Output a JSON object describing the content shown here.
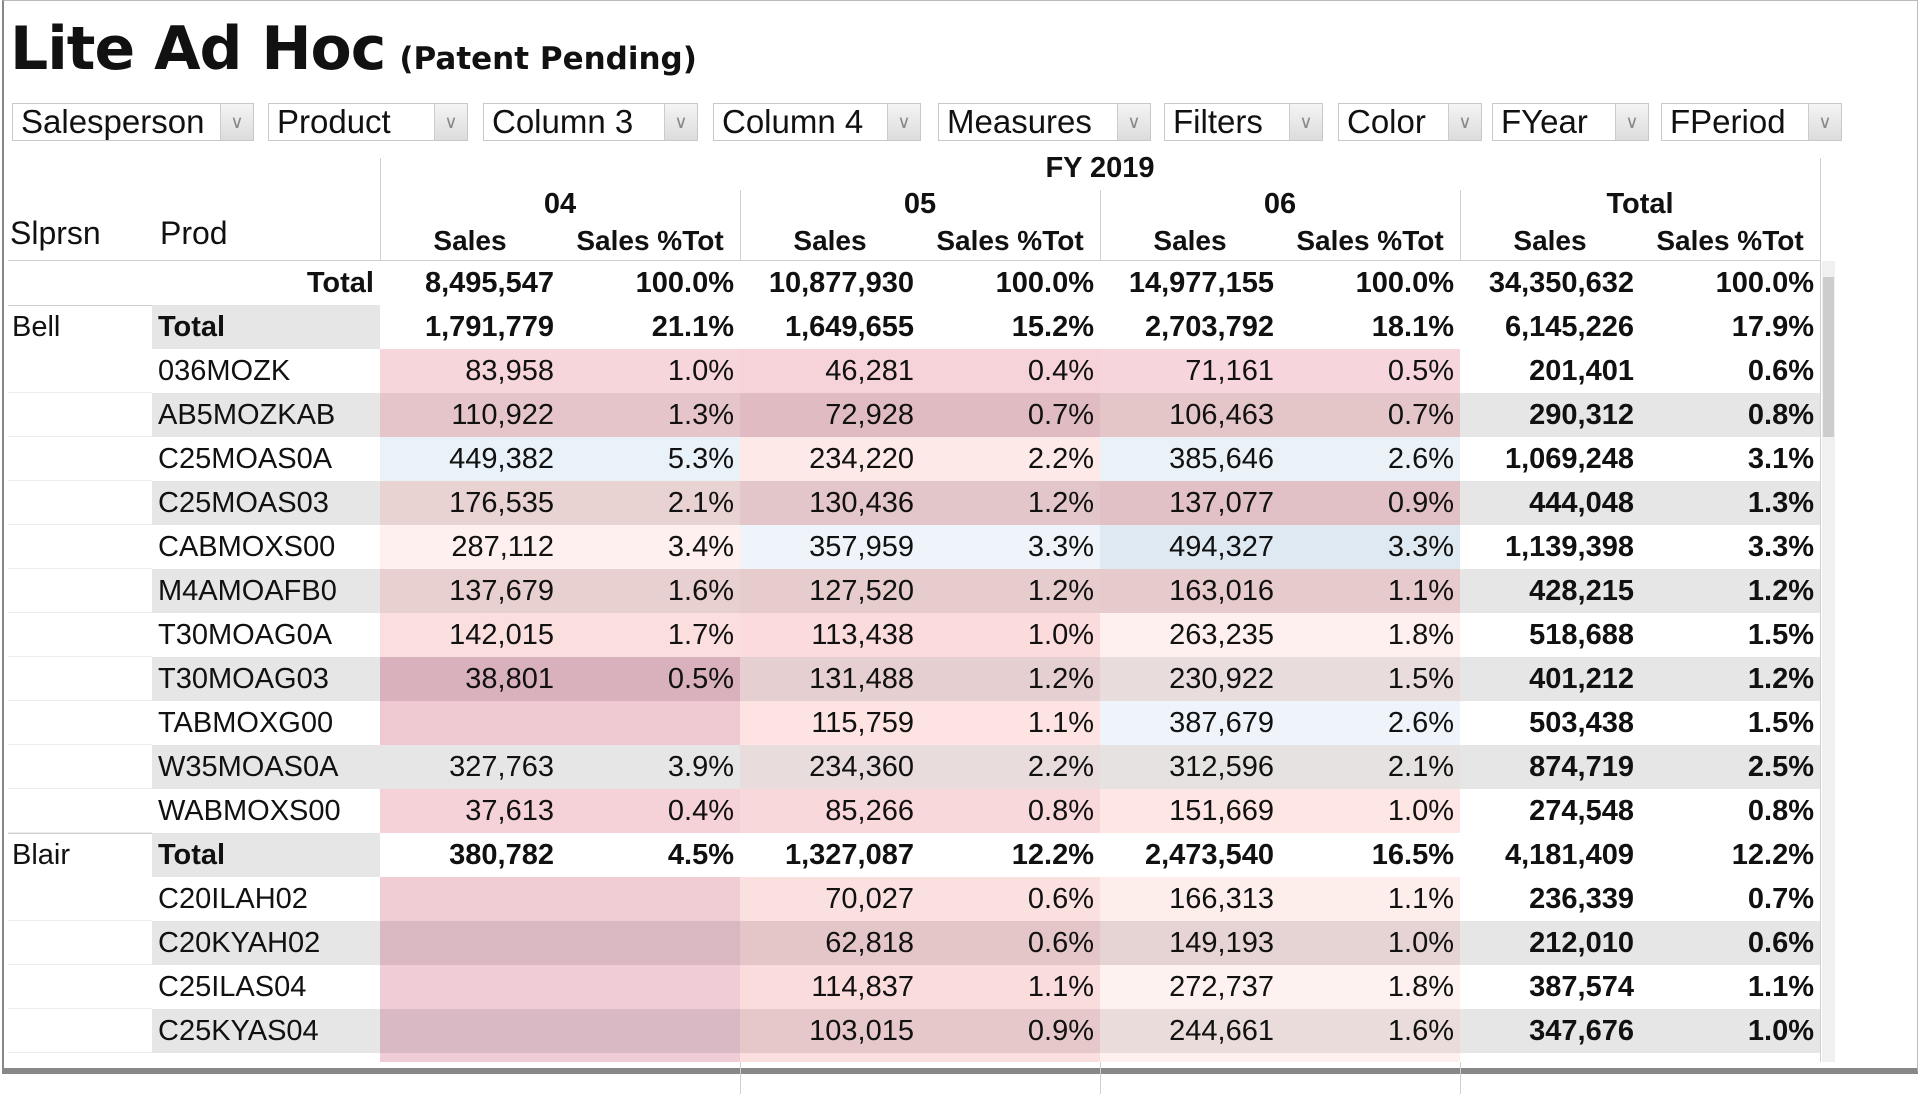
{
  "app": {
    "title": "Lite Ad Hoc",
    "subtitle": "(Patent Pending)"
  },
  "dropdowns": [
    {
      "label": "Salesperson"
    },
    {
      "label": "Product"
    },
    {
      "label": "Column 3"
    },
    {
      "label": "Column 4"
    },
    {
      "label": "Measures"
    },
    {
      "label": "Filters"
    },
    {
      "label": "Color"
    },
    {
      "label": "FYear"
    },
    {
      "label": "FPeriod"
    }
  ],
  "header": {
    "year": "FY 2019",
    "row_headers": [
      "Slprsn",
      "Prod"
    ],
    "periods": [
      "04",
      "05",
      "06",
      "Total"
    ],
    "measures": [
      "Sales",
      "Sales %Tot"
    ]
  },
  "rows": [
    {
      "sp": "",
      "prod": "Total",
      "type": "grand",
      "v": [
        "8,495,547",
        "100.0%",
        "10,877,930",
        "100.0%",
        "14,977,155",
        "100.0%",
        "34,350,632",
        "100.0%"
      ],
      "c": [
        "#fff",
        "#fff",
        "#fff",
        "#fff"
      ]
    },
    {
      "sp": "Bell",
      "prod": "Total",
      "type": "sub",
      "v": [
        "1,791,779",
        "21.1%",
        "1,649,655",
        "15.2%",
        "2,703,792",
        "18.1%",
        "6,145,226",
        "17.9%"
      ],
      "c": [
        "#fff",
        "#fff",
        "#fff",
        "#fff"
      ]
    },
    {
      "sp": "",
      "prod": "036MOZK",
      "v": [
        "83,958",
        "1.0%",
        "46,281",
        "0.4%",
        "71,161",
        "0.5%",
        "201,401",
        "0.6%"
      ],
      "c": [
        "#f6d5db",
        "#f5d3d9",
        "#f6d6dc",
        "#fff"
      ]
    },
    {
      "sp": "",
      "prod": "AB5MOZKAB",
      "v": [
        "110,922",
        "1.3%",
        "72,928",
        "0.7%",
        "106,463",
        "0.7%",
        "290,312",
        "0.8%"
      ],
      "c": [
        "#e5c5c9",
        "#e0bcc2",
        "#e4c5c8",
        "#e6e6e6"
      ]
    },
    {
      "sp": "",
      "prod": "C25MOAS0A",
      "v": [
        "449,382",
        "5.3%",
        "234,220",
        "2.2%",
        "385,646",
        "2.6%",
        "1,069,248",
        "3.1%"
      ],
      "c": [
        "#e9f2f9",
        "#fde9e7",
        "#eaf2f8",
        "#fff"
      ]
    },
    {
      "sp": "",
      "prod": "C25MOAS03",
      "v": [
        "176,535",
        "2.1%",
        "130,436",
        "1.2%",
        "137,077",
        "0.9%",
        "444,048",
        "1.3%"
      ],
      "c": [
        "#e8d2d2",
        "#e3c6c9",
        "#e1c1c5",
        "#e6e6e6"
      ]
    },
    {
      "sp": "",
      "prod": "CABMOXS00",
      "v": [
        "287,112",
        "3.4%",
        "357,959",
        "3.3%",
        "494,327",
        "3.3%",
        "1,139,398",
        "3.3%"
      ],
      "c": [
        "#fdf0ee",
        "#eef4f9",
        "#dfe9f1",
        "#fff"
      ]
    },
    {
      "sp": "",
      "prod": "M4AMOAFB0",
      "v": [
        "137,679",
        "1.6%",
        "127,520",
        "1.2%",
        "163,016",
        "1.1%",
        "428,215",
        "1.2%"
      ],
      "c": [
        "#e8d0d0",
        "#e6cccd",
        "#e6cacc",
        "#e6e6e6"
      ]
    },
    {
      "sp": "",
      "prod": "T30MOAG0A",
      "v": [
        "142,015",
        "1.7%",
        "113,438",
        "1.0%",
        "263,235",
        "1.8%",
        "518,688",
        "1.5%"
      ],
      "c": [
        "#fbdede",
        "#fbdbdb",
        "#fdf0ee",
        "#fff"
      ]
    },
    {
      "sp": "",
      "prod": "T30MOAG03",
      "v": [
        "38,801",
        "0.5%",
        "131,488",
        "1.2%",
        "230,922",
        "1.5%",
        "401,212",
        "1.2%"
      ],
      "c": [
        "#d8b1bd",
        "#e6cfd0",
        "#e8dcdc",
        "#e6e6e6"
      ]
    },
    {
      "sp": "",
      "prod": "TABMOXG00",
      "v": [
        "",
        "",
        "115,759",
        "1.1%",
        "387,679",
        "2.6%",
        "503,438",
        "1.5%"
      ],
      "c": [
        "#efc9d1",
        "#fde4e2",
        "#eef4f9",
        "#fff"
      ]
    },
    {
      "sp": "",
      "prod": "W35MOAS0A",
      "v": [
        "327,763",
        "3.9%",
        "234,360",
        "2.2%",
        "312,596",
        "2.1%",
        "874,719",
        "2.5%"
      ],
      "c": [
        "#e6e6e6",
        "#e8dcdc",
        "#e7e2e2",
        "#e6e6e6"
      ]
    },
    {
      "sp": "",
      "prod": "WABMOXS00",
      "v": [
        "37,613",
        "0.4%",
        "85,266",
        "0.8%",
        "151,669",
        "1.0%",
        "274,548",
        "0.8%"
      ],
      "c": [
        "#f4d2d8",
        "#f8d8da",
        "#fde6e4",
        "#fff"
      ]
    },
    {
      "sp": "Blair",
      "prod": "Total",
      "type": "sub",
      "v": [
        "380,782",
        "4.5%",
        "1,327,087",
        "12.2%",
        "2,473,540",
        "16.5%",
        "4,181,409",
        "12.2%"
      ],
      "c": [
        "#fff",
        "#fff",
        "#fff",
        "#fff"
      ]
    },
    {
      "sp": "",
      "prod": "C20ILAH02",
      "v": [
        "",
        "",
        "70,027",
        "0.6%",
        "166,313",
        "1.1%",
        "236,339",
        "0.7%"
      ],
      "c": [
        "#f0ccd5",
        "#fbe0e0",
        "#fdeeec",
        "#fff"
      ]
    },
    {
      "sp": "",
      "prod": "C20KYAH02",
      "v": [
        "",
        "",
        "62,818",
        "0.6%",
        "149,193",
        "1.0%",
        "212,010",
        "0.6%"
      ],
      "c": [
        "#dab8c2",
        "#e4c6c8",
        "#e6d4d4",
        "#e6e6e6"
      ]
    },
    {
      "sp": "",
      "prod": "C25ILAS04",
      "v": [
        "",
        "",
        "114,837",
        "1.1%",
        "272,737",
        "1.8%",
        "387,574",
        "1.1%"
      ],
      "c": [
        "#efccd6",
        "#fadcdc",
        "#fdf2f0",
        "#fff"
      ]
    },
    {
      "sp": "",
      "prod": "C25KYAS04",
      "v": [
        "",
        "",
        "103,015",
        "0.9%",
        "244,661",
        "1.6%",
        "347,676",
        "1.0%"
      ],
      "c": [
        "#d9b9c3",
        "#e6c8ca",
        "#ebdcdc",
        "#e6e6e6"
      ]
    },
    {
      "sp": "",
      "prod": "",
      "v": [
        "",
        "",
        "",
        "",
        "",
        "",
        "",
        ""
      ],
      "c": [
        "#efccd6",
        "#fbdede",
        "#fdf0ee",
        "#fff"
      ]
    }
  ]
}
